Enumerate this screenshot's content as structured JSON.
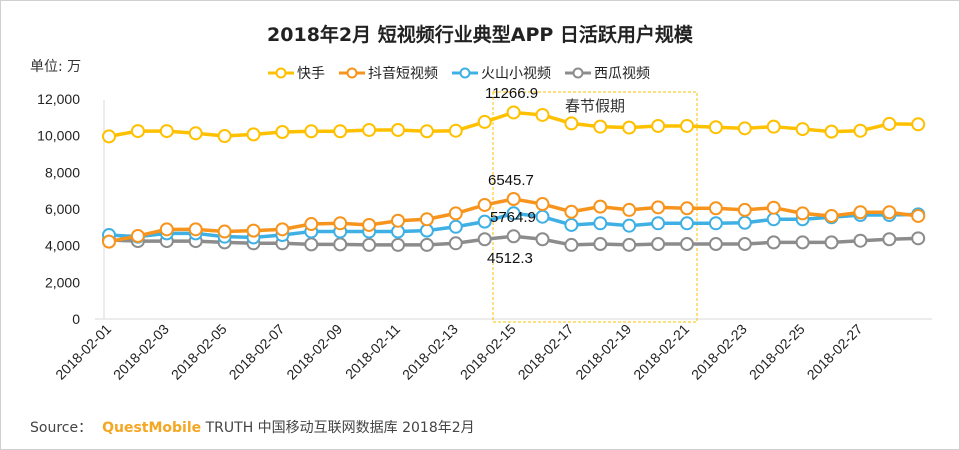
{
  "chart_data": {
    "type": "line",
    "title": "2018年2月 短视频行业典型APP 日活跃用户规模",
    "unit_label": "单位: 万",
    "ylim": [
      0,
      12000
    ],
    "y_ticks": [
      "0",
      "2,000",
      "4,000",
      "6,000",
      "8,000",
      "10,000",
      "12,000"
    ],
    "x_tick_labels": [
      "2018-02-01",
      "2018-02-03",
      "2018-02-05",
      "2018-02-07",
      "2018-02-09",
      "2018-02-11",
      "2018-02-13",
      "2018-02-15",
      "2018-02-17",
      "2018-02-19",
      "2018-02-21",
      "2018-02-23",
      "2018-02-25",
      "2018-02-27"
    ],
    "grid": false,
    "legend_position": "top",
    "series": [
      {
        "name": "快手",
        "color": "#ffc000",
        "values": [
          9960,
          10250,
          10250,
          10130,
          9980,
          10070,
          10200,
          10240,
          10240,
          10310,
          10310,
          10240,
          10270,
          10750,
          11266.9,
          11130,
          10670,
          10490,
          10440,
          10530,
          10530,
          10460,
          10400,
          10490,
          10360,
          10220,
          10270,
          10640,
          10620
        ]
      },
      {
        "name": "抖音短视频",
        "color": "#f7941d",
        "values": [
          4220,
          4530,
          4890,
          4890,
          4770,
          4820,
          4890,
          5180,
          5220,
          5130,
          5360,
          5440,
          5760,
          6220,
          6545.7,
          6270,
          5850,
          6130,
          5950,
          6090,
          6040,
          6040,
          5950,
          6070,
          5760,
          5620,
          5820,
          5820,
          5620
        ]
      },
      {
        "name": "火山小视频",
        "color": "#3fb0e4",
        "values": [
          4580,
          4490,
          4670,
          4670,
          4490,
          4450,
          4580,
          4770,
          4770,
          4770,
          4770,
          4820,
          5030,
          5310,
          5764.9,
          5580,
          5130,
          5220,
          5090,
          5220,
          5220,
          5220,
          5250,
          5440,
          5440,
          5550,
          5670,
          5670,
          5710
        ]
      },
      {
        "name": "西瓜视频",
        "color": "#8c8c8c",
        "values": [
          4310,
          4250,
          4250,
          4250,
          4180,
          4130,
          4130,
          4070,
          4070,
          4040,
          4040,
          4040,
          4130,
          4350,
          4512.3,
          4350,
          4040,
          4090,
          4040,
          4090,
          4090,
          4090,
          4090,
          4180,
          4180,
          4180,
          4270,
          4350,
          4400
        ]
      }
    ],
    "data_labels": [
      "11266.9",
      "6545.7",
      "5764.9",
      "4512.3"
    ],
    "annotation": {
      "text": "春节假期",
      "color": "#ffc000"
    }
  },
  "footer": {
    "source_label": "Source：",
    "brand": "QuestMobile",
    "text": "TRUTH 中国移动互联网数据库 2018年2月"
  }
}
